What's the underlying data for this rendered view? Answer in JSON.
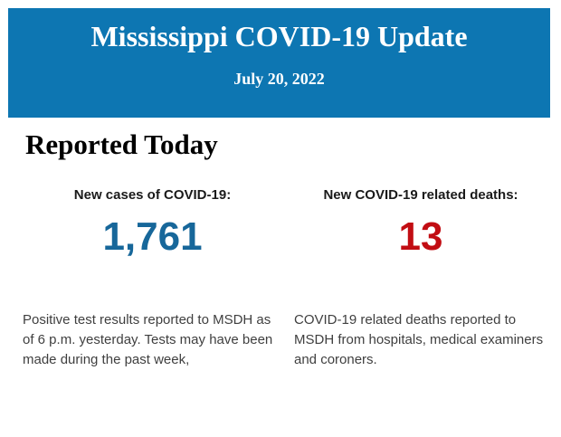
{
  "banner": {
    "title": "Mississippi COVID-19 Update",
    "date": "July 20, 2022",
    "background_color": "#0d76b2",
    "text_color": "#ffffff"
  },
  "section_heading": "Reported Today",
  "stat_cards": [
    {
      "id": "new-cases",
      "label": "New cases of COVID-19:",
      "value": "1,761",
      "value_color": "#17679a",
      "description": "Positive test results reported to MSDH as of 6 p.m. yesterday. Tests may have been made during the past week,"
    },
    {
      "id": "new-deaths",
      "label": "New COVID-19 related deaths:",
      "value": "13",
      "value_color": "#c20d13",
      "description": "COVID-19 related deaths reported to MSDH from hospitals, medical examiners and coroners."
    }
  ],
  "colors": {
    "page_background": "#ffffff",
    "heading_text": "#000000",
    "label_text": "#1a1a1a",
    "description_text": "#3f3f3f"
  }
}
